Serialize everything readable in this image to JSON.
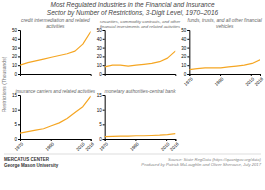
{
  "title": "Most Regulated Industries in the Financial and Insurance\nSector by Number of Restrictions, 3-Digit Level, 1970–2016",
  "ylabel": "Restrictions (Thousands)",
  "annotations": [
    "MERCATUS CENTER\nGeorge Mason University",
    "Source: State RegData (https://quantgov.org/data)\nProduced by Patrick McLaughlin and Oliver Sherouse, July 2017"
  ],
  "chart_data": [
    {
      "type": "line",
      "title": "credit intermediation and related\nactivities",
      "x": [
        1970,
        1975.111111111111,
        1980.2222222222222,
        1985.3333333333333,
        1990.4444444444443,
        1995.5555555555557,
        2000.6666666666667,
        2005.7777777777778,
        2010.888888888889,
        2016
      ],
      "values": [
        10,
        13,
        15,
        17,
        19,
        21,
        23,
        26,
        34,
        48
      ],
      "color": "#f5a623",
      "xlim": [
        1970,
        2016
      ],
      "ylim": [
        0,
        50
      ],
      "yticks": [
        0,
        10,
        20,
        30,
        40,
        50
      ],
      "grid": false,
      "tick_labels": "y"
    },
    {
      "type": "line",
      "title": "securities, commodity contracts, and other\nfinancial investments and related activities",
      "x": [
        1970,
        1975.111111111111,
        1980.2222222222222,
        1985.3333333333333,
        1990.4444444444443,
        1995.5555555555557,
        2000.6666666666667,
        2005.7777777777778,
        2010.888888888889,
        2016
      ],
      "values": [
        8,
        10,
        10,
        9,
        10,
        11,
        12,
        14,
        18,
        26
      ],
      "color": "#f5a623",
      "xlim": [
        1970,
        2016
      ],
      "ylim": [
        0,
        50
      ],
      "yticks": [
        0,
        10,
        20,
        30,
        40,
        50
      ],
      "grid": false,
      "tick_labels": "y"
    },
    {
      "type": "line",
      "title": "funds, trusts, and all other financial\nvehicles",
      "x": [
        1970,
        1975.111111111111,
        1980.2222222222222,
        1985.3333333333333,
        1990.4444444444443,
        1995.5555555555557,
        2000.6666666666667,
        2005.7777777777778,
        2010.888888888889,
        2016
      ],
      "values": [
        5,
        6,
        7,
        7,
        7,
        8,
        9,
        10,
        12,
        16
      ],
      "color": "#f5a623",
      "xlim": [
        1970,
        2016
      ],
      "xticks": [
        1970,
        1990,
        2010,
        2016
      ],
      "ylim": [
        0,
        50
      ],
      "yticks": [
        0,
        10,
        20,
        30,
        40,
        50
      ],
      "grid": false
    },
    {
      "type": "line",
      "title": "insurance carriers and related activities",
      "x": [
        1970,
        1975.111111111111,
        1980.2222222222222,
        1985.3333333333333,
        1990.4444444444443,
        1995.5555555555557,
        2000.6666666666667,
        2005.7777777777778,
        2010.888888888889,
        2016
      ],
      "values": [
        2,
        2.5,
        3.0,
        3.5,
        4.5,
        5.5,
        7.0,
        9.0,
        11.0,
        14.5
      ],
      "color": "#f5a623",
      "xlim": [
        1970,
        2016
      ],
      "xticks": [
        1970,
        1990,
        2010,
        2016
      ],
      "ylim": [
        0,
        15
      ],
      "yticks": [
        0,
        5,
        10,
        15
      ],
      "grid": false
    },
    {
      "type": "line",
      "title": "monetary authorities-central bank",
      "x": [
        1970,
        1975.111111111111,
        1980.2222222222222,
        1985.3333333333333,
        1990.4444444444443,
        1995.5555555555557,
        2000.6666666666667,
        2005.7777777777778,
        2010.888888888889,
        2016
      ],
      "values": [
        0.8,
        0.9,
        1.0,
        1.0,
        1.1,
        1.1,
        1.2,
        1.3,
        1.5,
        1.8
      ],
      "color": "#f5a623",
      "xlim": [
        1970,
        2016
      ],
      "xticks": [
        1970,
        1990,
        2010,
        2016
      ],
      "ylim": [
        0,
        15
      ],
      "yticks": [
        0,
        5,
        10,
        15
      ],
      "grid": false
    }
  ]
}
